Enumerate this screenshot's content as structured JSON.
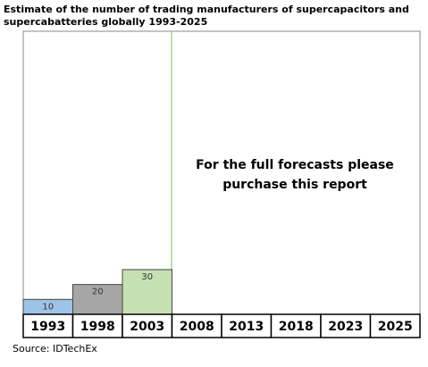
{
  "chart_data": {
    "type": "bar",
    "title": [
      "Estimate of the number of trading manufacturers of supercapacitors and",
      "supercabatteries globally 1993-2025"
    ],
    "categories": [
      "1993",
      "1998",
      "2003",
      "2008",
      "2013",
      "2018",
      "2023",
      "2025"
    ],
    "values": [
      10,
      20,
      30,
      null,
      null,
      null,
      null,
      null
    ],
    "colors": [
      "#9dc3e6",
      "#a6a6a6",
      "#c6e0b4",
      null,
      null,
      null,
      null,
      null
    ],
    "ylim": [
      0,
      190
    ],
    "annotation": [
      "For the full forecasts please",
      "purchase this report"
    ],
    "source": "Source: IDTechEx"
  }
}
